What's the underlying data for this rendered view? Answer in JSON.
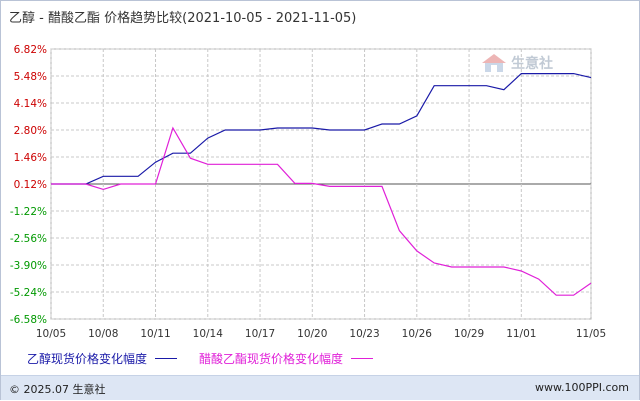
{
  "title": {
    "series_a_name": "乙醇",
    "separator": "-",
    "series_b_name": "醋酸乙酯",
    "suffix": "价格趋势比较",
    "date_range": "(2021-10-05 - 2021-11-05)"
  },
  "watermark": "生意社",
  "footer": {
    "copyright": "© 2025.07 生意社",
    "url": "www.100PPI.com"
  },
  "colors": {
    "series_a": "#1a1aa8",
    "series_b": "#e020d8",
    "y_positive": "#cc0000",
    "y_negative": "#009900",
    "grid": "#c8c8c8",
    "zero_line": "#555555"
  },
  "chart_data": {
    "type": "line",
    "title": "乙醇 - 醋酸乙酯 价格趋势比较(2021-10-05 - 2021-11-05)",
    "x": [
      "10/05",
      "10/06",
      "10/07",
      "10/08",
      "10/09",
      "10/10",
      "10/11",
      "10/12",
      "10/13",
      "10/14",
      "10/15",
      "10/16",
      "10/17",
      "10/18",
      "10/19",
      "10/20",
      "10/21",
      "10/22",
      "10/23",
      "10/24",
      "10/25",
      "10/26",
      "10/27",
      "10/28",
      "10/29",
      "10/30",
      "10/31",
      "11/01",
      "11/02",
      "11/03",
      "11/04",
      "11/05"
    ],
    "x_tick_labels": [
      "10/05",
      "10/08",
      "10/11",
      "10/14",
      "10/17",
      "10/20",
      "10/23",
      "10/26",
      "10/29",
      "11/01",
      "11/05"
    ],
    "y_tick_labels": [
      "6.82%",
      "5.48%",
      "4.14%",
      "2.80%",
      "1.46%",
      "0.12%",
      "-1.22%",
      "-2.56%",
      "-3.90%",
      "-5.24%",
      "-6.58%"
    ],
    "ylim": [
      -6.58,
      6.82
    ],
    "grid": true,
    "series": [
      {
        "name": "乙醇现货价格变化幅度",
        "values": [
          0.12,
          0.12,
          0.12,
          0.5,
          0.5,
          0.5,
          1.2,
          1.65,
          1.65,
          2.4,
          2.8,
          2.8,
          2.8,
          2.9,
          2.9,
          2.9,
          2.8,
          2.8,
          2.8,
          3.1,
          3.1,
          3.5,
          5.0,
          5.0,
          5.0,
          5.0,
          4.8,
          5.6,
          5.6,
          5.6,
          5.6,
          5.4
        ]
      },
      {
        "name": "醋酸乙酯现货价格变化幅度",
        "values": [
          0.12,
          0.12,
          0.12,
          -0.15,
          0.12,
          0.12,
          0.12,
          2.9,
          1.4,
          1.1,
          1.1,
          1.1,
          1.1,
          1.1,
          0.15,
          0.15,
          0.0,
          0.0,
          0.0,
          0.0,
          -2.2,
          -3.2,
          -3.8,
          -4.0,
          -4.0,
          -4.0,
          -4.0,
          -4.2,
          -4.6,
          -5.4,
          -5.4,
          -4.8
        ]
      }
    ],
    "legend_position": "bottom-left"
  }
}
